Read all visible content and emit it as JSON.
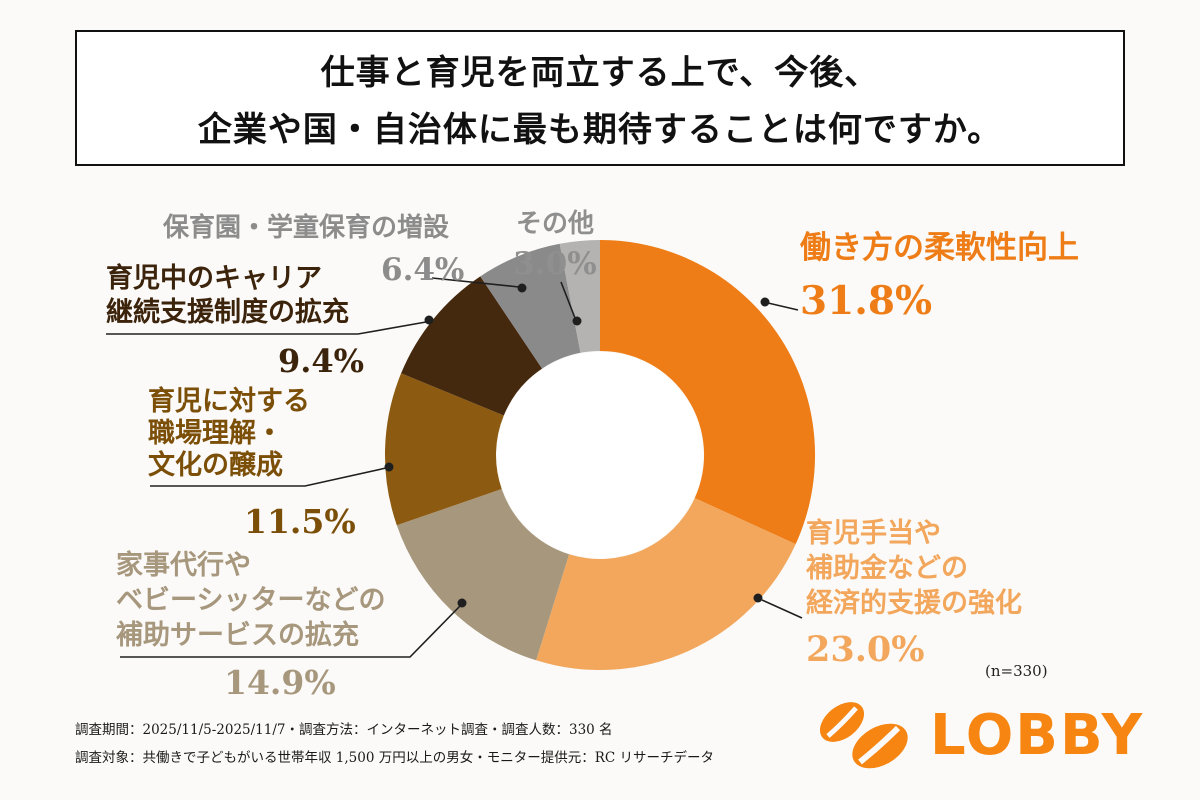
{
  "title": {
    "line1": "仕事と育児を両立する上で、今後、",
    "line2": "企業や国・自治体に最も期待することは何ですか。"
  },
  "chart_data": {
    "type": "pie",
    "donut": true,
    "title": "仕事と育児を両立する上で、今後、企業や国・自治体に最も期待することは何ですか。",
    "n_label": "(n=330)",
    "start_angle_deg": 0,
    "direction": "clockwise",
    "segments": [
      {
        "label": "働き方の柔軟性向上",
        "value": 31.8,
        "pct_label": "31.8%",
        "color": "#EE7D17",
        "label_color": "#EE7D17"
      },
      {
        "label": "育児手当や\n補助金などの\n経済的支援の強化",
        "value": 23.0,
        "pct_label": "23.0%",
        "color": "#F2A75D",
        "label_color": "#F2A75D"
      },
      {
        "label": "家事代行や\nベビーシッターなどの\n補助サービスの拡充",
        "value": 14.9,
        "pct_label": "14.9%",
        "color": "#A6977D",
        "label_color": "#A6977D"
      },
      {
        "label": "育児に対する\n職場理解・\n文化の醸成",
        "value": 11.5,
        "pct_label": "11.5%",
        "color": "#8C5A10",
        "label_color": "#7C4F08"
      },
      {
        "label": "育児中のキャリア\n継続支援制度の拡充",
        "value": 9.4,
        "pct_label": "9.4%",
        "color": "#45290E",
        "label_color": "#3C240C"
      },
      {
        "label": "保育園・学童保育の増設",
        "value": 6.4,
        "pct_label": "6.4%",
        "color": "#8A8A8A",
        "label_color": "#8C8C8C"
      },
      {
        "label": "その他",
        "value": 3.0,
        "pct_label": "3.0%",
        "color": "#B5B3B1",
        "label_color": "#8F8F8F"
      }
    ]
  },
  "footer": {
    "line1": "調査期間：2025/11/5-2025/11/7・調査方法：インターネット調査・調査人数：330 名",
    "line2": "調査対象：共働きで子どもがいる世帯年収 1,500 万円以上の男女・モニター提供元：RC リサーチデータ"
  },
  "brand": {
    "name": "LOBBY",
    "color": "#F68511"
  }
}
